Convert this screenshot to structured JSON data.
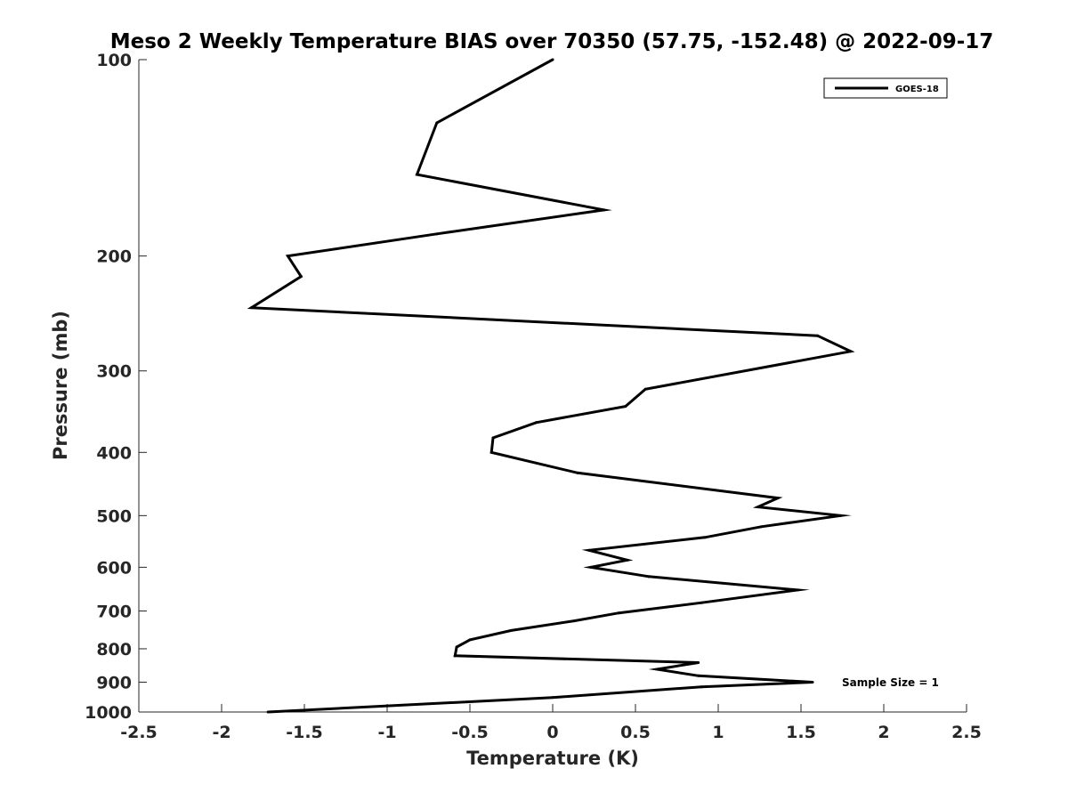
{
  "chart_data": {
    "type": "line",
    "title": "Meso 2 Weekly Temperature BIAS over 70350 (57.75, -152.48) @ 2022-09-17",
    "xlabel": "Temperature (K)",
    "ylabel": "Pressure (mb)",
    "xlim": [
      -2.5,
      2.5
    ],
    "ylim": [
      1000,
      100
    ],
    "y_scale": "log",
    "y_reversed": true,
    "grid": false,
    "legend_position": "top-right",
    "x_ticks": [
      -2.5,
      -2,
      -1.5,
      -1,
      -0.5,
      0,
      0.5,
      1,
      1.5,
      2,
      2.5
    ],
    "x_tick_labels": [
      "-2.5",
      "-2",
      "-1.5",
      "-1",
      "-0.5",
      "0",
      "0.5",
      "1",
      "1.5",
      "2",
      "2.5"
    ],
    "y_ticks": [
      100,
      200,
      300,
      400,
      500,
      600,
      700,
      800,
      900,
      1000
    ],
    "y_tick_labels": [
      "100",
      "200",
      "300",
      "400",
      "500",
      "600",
      "700",
      "800",
      "900",
      "1000"
    ],
    "series": [
      {
        "name": "GOES-18",
        "color": "#000000",
        "points": [
          {
            "x": 0.0,
            "y": 100
          },
          {
            "x": -0.7,
            "y": 125
          },
          {
            "x": -0.82,
            "y": 150
          },
          {
            "x": 0.31,
            "y": 170
          },
          {
            "x": -0.7,
            "y": 185
          },
          {
            "x": -1.6,
            "y": 200
          },
          {
            "x": -1.52,
            "y": 215
          },
          {
            "x": -1.82,
            "y": 240
          },
          {
            "x": 1.6,
            "y": 265
          },
          {
            "x": 1.8,
            "y": 280
          },
          {
            "x": 0.56,
            "y": 320
          },
          {
            "x": 0.44,
            "y": 340
          },
          {
            "x": -0.1,
            "y": 360
          },
          {
            "x": -0.36,
            "y": 380
          },
          {
            "x": -0.37,
            "y": 400
          },
          {
            "x": 0.15,
            "y": 430
          },
          {
            "x": 1.36,
            "y": 470
          },
          {
            "x": 1.24,
            "y": 485
          },
          {
            "x": 1.74,
            "y": 500
          },
          {
            "x": 1.26,
            "y": 520
          },
          {
            "x": 0.92,
            "y": 540
          },
          {
            "x": 0.22,
            "y": 565
          },
          {
            "x": 0.45,
            "y": 585
          },
          {
            "x": 0.23,
            "y": 600
          },
          {
            "x": 0.58,
            "y": 620
          },
          {
            "x": 1.48,
            "y": 650
          },
          {
            "x": 0.9,
            "y": 680
          },
          {
            "x": 0.4,
            "y": 705
          },
          {
            "x": 0.13,
            "y": 725
          },
          {
            "x": -0.25,
            "y": 750
          },
          {
            "x": -0.5,
            "y": 775
          },
          {
            "x": -0.58,
            "y": 795
          },
          {
            "x": -0.59,
            "y": 820
          },
          {
            "x": 0.88,
            "y": 840
          },
          {
            "x": 0.63,
            "y": 860
          },
          {
            "x": 0.88,
            "y": 880
          },
          {
            "x": 1.57,
            "y": 900
          },
          {
            "x": 0.9,
            "y": 915
          },
          {
            "x": 0.0,
            "y": 950
          },
          {
            "x": -1.72,
            "y": 1000
          }
        ]
      }
    ],
    "annotations": [
      "Sample Size = 1"
    ]
  }
}
